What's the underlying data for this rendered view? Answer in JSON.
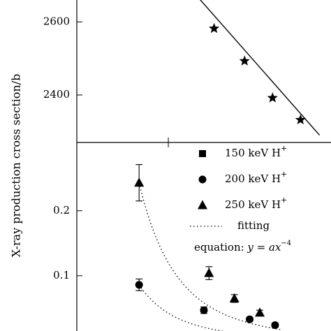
{
  "chart_data": [
    {
      "type": "scatter",
      "panel": "top",
      "ylim": [
        2270,
        2660
      ],
      "xlim": [
        0,
        1
      ],
      "yticks": [
        2400,
        2600
      ],
      "yticklabels": [
        "2400",
        "2600"
      ],
      "series": [
        {
          "marker": "star",
          "x": [
            0.54,
            0.66,
            0.77,
            0.88
          ],
          "y": [
            2582,
            2493,
            2392,
            2332
          ]
        }
      ],
      "fit_line": {
        "x": [
          0.48,
          0.955
        ],
        "y": [
          2665,
          2290
        ]
      }
    },
    {
      "type": "scatter",
      "panel": "bottom",
      "ylim": [
        0.015,
        0.305
      ],
      "xlim": [
        0,
        1
      ],
      "yticks": [
        0.1,
        0.2
      ],
      "yticklabels": [
        "0.1",
        "0.2"
      ],
      "series": [
        {
          "name": "150 keV H⁺",
          "marker": "square",
          "x": [],
          "y": []
        },
        {
          "name": "200 keV H⁺",
          "marker": "circle",
          "x": [
            0.245,
            0.5,
            0.68,
            0.78
          ],
          "y": [
            0.086,
            0.047,
            0.033,
            0.024
          ],
          "yerr": [
            0.009,
            0.005,
            0.003,
            0.003
          ]
        },
        {
          "name": "250 keV H⁺",
          "marker": "triangle",
          "x": [
            0.245,
            0.52,
            0.62,
            0.72
          ],
          "y": [
            0.243,
            0.104,
            0.065,
            0.043
          ],
          "yerr": [
            0.028,
            0.01,
            0.006,
            0.004
          ]
        }
      ],
      "fits": [
        {
          "x0": 0.245,
          "y0": 0.086,
          "x1": 0.8
        },
        {
          "x0": 0.245,
          "y0": 0.243,
          "x1": 0.8
        }
      ]
    }
  ],
  "ylabel": "X-ray production cross section/b",
  "legend": {
    "items": [
      {
        "marker": "square",
        "label": "150 keV H",
        "sup": "+"
      },
      {
        "marker": "circle",
        "label": "200 keV H",
        "sup": "+"
      },
      {
        "marker": "triangle",
        "label": "250 keV H",
        "sup": "+"
      }
    ],
    "fit_label": "fitting",
    "eq_prefix": "equation:",
    "eq_y": "y",
    "eq_eq": " = ",
    "eq_ax": "ax",
    "eq_exp": "−4"
  }
}
